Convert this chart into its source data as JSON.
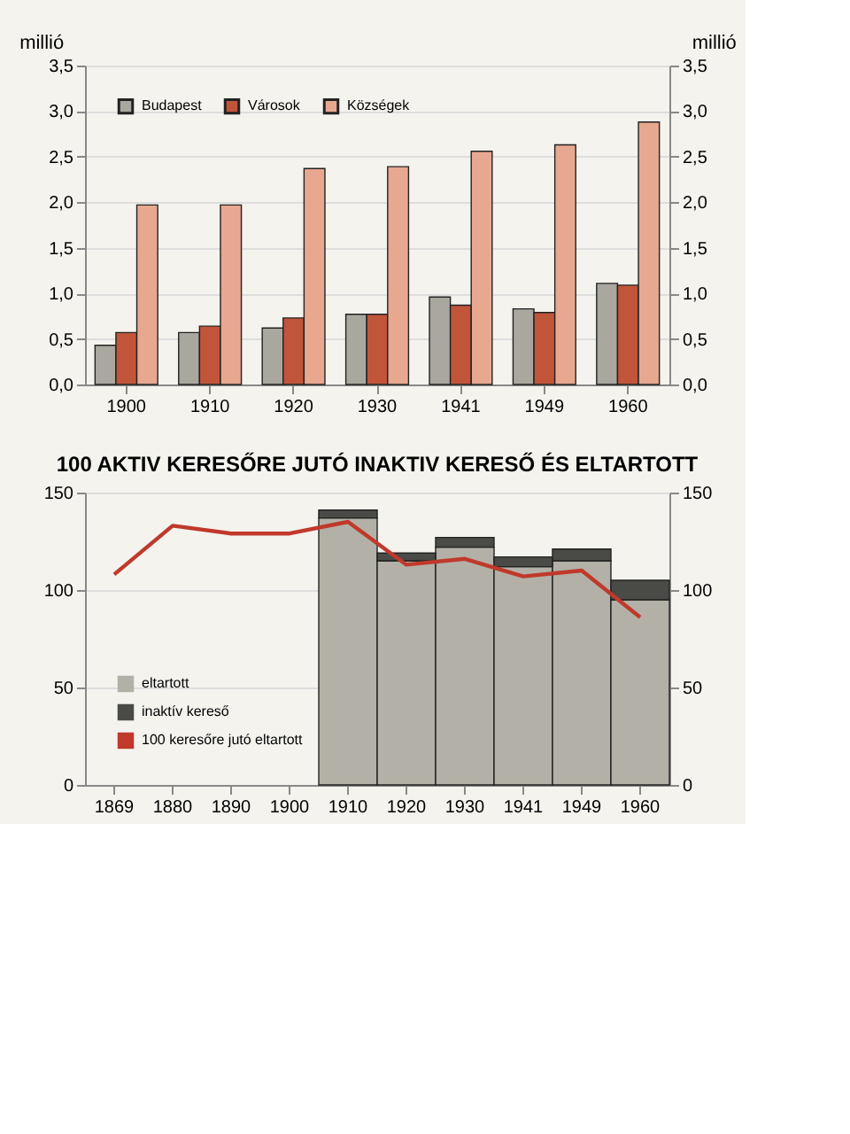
{
  "chart_data": [
    {
      "type": "bar",
      "categories": [
        "1900",
        "1910",
        "1920",
        "1930",
        "1941",
        "1949",
        "1960"
      ],
      "series": [
        {
          "name": "Budapest",
          "color": "#a9a79e",
          "values": [
            0.43,
            0.57,
            0.62,
            0.77,
            0.96,
            0.83,
            1.11
          ]
        },
        {
          "name": "Városok",
          "color": "#c0553a",
          "values": [
            0.57,
            0.64,
            0.73,
            0.77,
            0.87,
            0.79,
            1.09
          ]
        },
        {
          "name": "Községek",
          "color": "#e8a890",
          "axis": "y2",
          "values": [
            1.97,
            1.97,
            2.37,
            2.39,
            2.56,
            2.63,
            2.88
          ]
        }
      ],
      "ylabel": "millió",
      "y2label": "millió",
      "ylim": [
        0,
        3.5
      ],
      "yticks": [
        {
          "value": 0,
          "label": "0,0"
        },
        {
          "value": 0.5,
          "label": "0,5"
        },
        {
          "value": 1,
          "label": "1,0"
        },
        {
          "value": 1.5,
          "label": "1,5"
        },
        {
          "value": 2,
          "label": "2,0"
        },
        {
          "value": 2.5,
          "label": "2,5"
        },
        {
          "value": 3,
          "label": "3,0"
        },
        {
          "value": 3.5,
          "label": "3,5"
        }
      ],
      "y2lim": [
        0,
        3.5
      ],
      "y2ticks": [
        {
          "value": 0,
          "label": "0,0"
        },
        {
          "value": 0.5,
          "label": "0,5"
        },
        {
          "value": 1,
          "label": "1,0"
        },
        {
          "value": 1.5,
          "label": "1,5"
        },
        {
          "value": 2,
          "label": "2,0"
        },
        {
          "value": 2.5,
          "label": "2,5"
        },
        {
          "value": 3,
          "label": "3,0"
        },
        {
          "value": 3.5,
          "label": "3,5"
        }
      ],
      "grid": "y",
      "legend": "top left"
    },
    {
      "type": "bar",
      "stacked": true,
      "title": "100 AKTIV KERESŐRE JUTÓ INAKTIV KERESŐ ÉS ELTARTOTT",
      "categories": [
        "1869",
        "1880",
        "1890",
        "1900",
        "1910",
        "1920",
        "1930",
        "1941",
        "1949",
        "1960"
      ],
      "series": [
        {
          "name": "eltartott",
          "color": "#b3b1a7",
          "values": [
            null,
            null,
            null,
            null,
            137,
            115,
            122,
            112,
            115,
            95
          ]
        },
        {
          "name": "inaktív kereső",
          "color": "#4a4a46",
          "values": [
            null,
            null,
            null,
            null,
            4,
            4,
            5,
            5,
            6,
            10
          ]
        },
        {
          "name": "100 keresőre jutó eltartott",
          "type": "line",
          "axis": "y2",
          "color": "#c0392b",
          "values": [
            108,
            133,
            129,
            129,
            135,
            113,
            116,
            107,
            110,
            86
          ]
        }
      ],
      "ylim": [
        0,
        150
      ],
      "yticks": [
        0,
        50,
        100,
        150
      ],
      "y2lim": [
        0,
        150
      ],
      "y2ticks": [
        0,
        50,
        100,
        150
      ],
      "grid": "y",
      "legend": "bottom left"
    }
  ]
}
